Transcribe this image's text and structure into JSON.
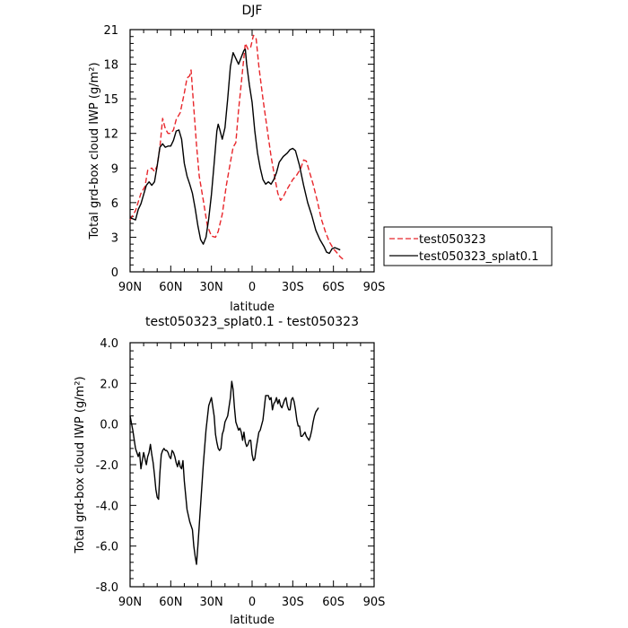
{
  "chart_data": [
    {
      "type": "line",
      "title": "DJF",
      "xlabel": "latitude",
      "ylabel": "Total grd-box cloud IWP (g/m²)",
      "xlim": [
        90,
        -90
      ],
      "ylim": [
        0,
        21
      ],
      "xticks": [
        90,
        60,
        30,
        0,
        -30,
        -60,
        -90
      ],
      "xtick_labels": [
        "90N",
        "60N",
        "30N",
        "0",
        "30S",
        "60S",
        "90S"
      ],
      "yticks": [
        0,
        3,
        6,
        9,
        12,
        15,
        18,
        21
      ],
      "ytick_labels": [
        "0",
        "3",
        "6",
        "9",
        "12",
        "15",
        "18",
        "21"
      ],
      "legend_position": "right-outside",
      "series": [
        {
          "name": "test050323",
          "color": "#e8262b",
          "dash": "dashed",
          "points": [
            [
              90,
              4.5
            ],
            [
              86,
              5.3
            ],
            [
              82,
              6.8
            ],
            [
              79,
              7.4
            ],
            [
              77,
              8.8
            ],
            [
              74,
              9.0
            ],
            [
              72,
              8.7
            ],
            [
              70,
              9.2
            ],
            [
              68,
              10.8
            ],
            [
              66,
              13.3
            ],
            [
              64,
              12.4
            ],
            [
              62,
              12.0
            ],
            [
              60,
              12.0
            ],
            [
              58,
              12.3
            ],
            [
              56,
              13.2
            ],
            [
              53,
              13.8
            ],
            [
              50,
              15.5
            ],
            [
              48,
              16.8
            ],
            [
              46,
              17.0
            ],
            [
              45,
              17.5
            ],
            [
              43,
              14.2
            ],
            [
              41,
              11.0
            ],
            [
              39,
              8.3
            ],
            [
              36,
              6.2
            ],
            [
              33,
              4.0
            ],
            [
              30,
              3.1
            ],
            [
              27,
              3.0
            ],
            [
              25,
              3.5
            ],
            [
              22,
              5.0
            ],
            [
              19,
              7.5
            ],
            [
              16,
              9.5
            ],
            [
              14,
              10.8
            ],
            [
              12,
              11.2
            ],
            [
              10,
              14.0
            ],
            [
              7,
              17.5
            ],
            [
              5,
              19.8
            ],
            [
              3,
              19.3
            ],
            [
              1,
              19.5
            ],
            [
              -1,
              20.5
            ],
            [
              -3,
              20.2
            ],
            [
              -5,
              17.8
            ],
            [
              -8,
              15.0
            ],
            [
              -11,
              12.5
            ],
            [
              -14,
              10.0
            ],
            [
              -17,
              8.0
            ],
            [
              -19,
              6.8
            ],
            [
              -21,
              6.2
            ],
            [
              -23,
              6.5
            ],
            [
              -25,
              7.0
            ],
            [
              -28,
              7.6
            ],
            [
              -30,
              8.0
            ],
            [
              -33,
              8.4
            ],
            [
              -36,
              9.0
            ],
            [
              -38,
              9.7
            ],
            [
              -40,
              9.6
            ],
            [
              -42,
              8.8
            ],
            [
              -45,
              7.6
            ],
            [
              -48,
              6.2
            ],
            [
              -51,
              4.6
            ],
            [
              -54,
              3.5
            ],
            [
              -57,
              2.6
            ],
            [
              -60,
              2.0
            ],
            [
              -63,
              1.6
            ],
            [
              -65,
              1.3
            ],
            [
              -67,
              1.1
            ]
          ]
        },
        {
          "name": "test050323_splat0.1",
          "color": "#000000",
          "dash": "solid",
          "points": [
            [
              90,
              4.7
            ],
            [
              88,
              4.6
            ],
            [
              86,
              4.5
            ],
            [
              84,
              5.4
            ],
            [
              82,
              5.9
            ],
            [
              80,
              6.7
            ],
            [
              78,
              7.5
            ],
            [
              76,
              7.8
            ],
            [
              74,
              7.5
            ],
            [
              72,
              7.8
            ],
            [
              70,
              9.2
            ],
            [
              68,
              10.8
            ],
            [
              66,
              11.1
            ],
            [
              64,
              10.8
            ],
            [
              62,
              10.9
            ],
            [
              60,
              10.9
            ],
            [
              58,
              11.4
            ],
            [
              56,
              12.2
            ],
            [
              54,
              12.3
            ],
            [
              52,
              11.5
            ],
            [
              50,
              9.4
            ],
            [
              48,
              8.3
            ],
            [
              46,
              7.6
            ],
            [
              44,
              6.8
            ],
            [
              42,
              5.5
            ],
            [
              40,
              4.0
            ],
            [
              38,
              2.8
            ],
            [
              36,
              2.4
            ],
            [
              34,
              3.0
            ],
            [
              32,
              4.6
            ],
            [
              30,
              6.7
            ],
            [
              28,
              9.4
            ],
            [
              26,
              12.2
            ],
            [
              25,
              12.8
            ],
            [
              24,
              12.4
            ],
            [
              22,
              11.5
            ],
            [
              20,
              12.5
            ],
            [
              18,
              15.0
            ],
            [
              16,
              17.8
            ],
            [
              14,
              19.0
            ],
            [
              12,
              18.5
            ],
            [
              10,
              18.0
            ],
            [
              8,
              18.6
            ],
            [
              6,
              19.2
            ],
            [
              5,
              19.3
            ],
            [
              4,
              18.0
            ],
            [
              2,
              16.2
            ],
            [
              0,
              14.7
            ],
            [
              -2,
              12.2
            ],
            [
              -4,
              10.3
            ],
            [
              -6,
              9.0
            ],
            [
              -8,
              8.0
            ],
            [
              -10,
              7.6
            ],
            [
              -12,
              7.8
            ],
            [
              -14,
              7.6
            ],
            [
              -16,
              8.0
            ],
            [
              -18,
              8.6
            ],
            [
              -20,
              9.5
            ],
            [
              -23,
              10.0
            ],
            [
              -26,
              10.3
            ],
            [
              -28,
              10.6
            ],
            [
              -30,
              10.7
            ],
            [
              -32,
              10.5
            ],
            [
              -35,
              9.2
            ],
            [
              -38,
              7.5
            ],
            [
              -41,
              6.0
            ],
            [
              -44,
              4.9
            ],
            [
              -47,
              3.6
            ],
            [
              -50,
              2.8
            ],
            [
              -53,
              2.2
            ],
            [
              -55,
              1.7
            ],
            [
              -57,
              1.6
            ],
            [
              -59,
              2.0
            ],
            [
              -61,
              2.1
            ],
            [
              -63,
              2.0
            ],
            [
              -65,
              1.9
            ]
          ]
        }
      ]
    },
    {
      "type": "line",
      "title": "test050323_splat0.1 - test050323",
      "xlabel": "latitude",
      "ylabel": "Total grd-box cloud IWP (g/m²)",
      "xlim": [
        90,
        -90
      ],
      "ylim": [
        -8,
        4
      ],
      "xticks": [
        90,
        60,
        30,
        0,
        -30,
        -60,
        -90
      ],
      "xtick_labels": [
        "90N",
        "60N",
        "30N",
        "0",
        "30S",
        "60S",
        "90S"
      ],
      "yticks": [
        -8,
        -6,
        -4,
        -2,
        0,
        2,
        4
      ],
      "ytick_labels": [
        "-8.0",
        "-6.0",
        "-4.0",
        "-2.0",
        "0.0",
        "2.0",
        "4.0"
      ],
      "series": [
        {
          "color": "#000000",
          "dash": "solid",
          "points": [
            [
              90,
              0.4
            ],
            [
              88,
              -0.3
            ],
            [
              86,
              -1.2
            ],
            [
              84,
              -1.6
            ],
            [
              83,
              -1.4
            ],
            [
              82,
              -2.2
            ],
            [
              81,
              -1.8
            ],
            [
              80,
              -1.4
            ],
            [
              78,
              -2.0
            ],
            [
              77,
              -1.6
            ],
            [
              76,
              -1.4
            ],
            [
              75,
              -1.0
            ],
            [
              74,
              -1.5
            ],
            [
              73,
              -1.9
            ],
            [
              72,
              -2.5
            ],
            [
              71,
              -3.2
            ],
            [
              70,
              -3.6
            ],
            [
              69,
              -3.7
            ],
            [
              68,
              -2.4
            ],
            [
              67,
              -1.5
            ],
            [
              66,
              -1.3
            ],
            [
              65,
              -1.2
            ],
            [
              64,
              -1.3
            ],
            [
              63,
              -1.3
            ],
            [
              62,
              -1.4
            ],
            [
              61,
              -1.6
            ],
            [
              60,
              -1.7
            ],
            [
              59,
              -1.3
            ],
            [
              58,
              -1.4
            ],
            [
              57,
              -1.6
            ],
            [
              56,
              -1.9
            ],
            [
              55,
              -2.1
            ],
            [
              54,
              -1.8
            ],
            [
              53,
              -2.1
            ],
            [
              52,
              -2.2
            ],
            [
              51,
              -1.8
            ],
            [
              50,
              -2.8
            ],
            [
              48,
              -4.2
            ],
            [
              46,
              -4.8
            ],
            [
              44,
              -5.2
            ],
            [
              43,
              -6.0
            ],
            [
              42,
              -6.5
            ],
            [
              41,
              -6.9
            ],
            [
              40,
              -6.0
            ],
            [
              38,
              -4.0
            ],
            [
              36,
              -2.0
            ],
            [
              34,
              -0.3
            ],
            [
              32,
              0.9
            ],
            [
              30,
              1.3
            ],
            [
              28,
              0.4
            ],
            [
              27,
              -0.5
            ],
            [
              26,
              -0.9
            ],
            [
              25,
              -1.2
            ],
            [
              24,
              -1.3
            ],
            [
              23,
              -1.2
            ],
            [
              22,
              -0.5
            ],
            [
              21,
              -0.3
            ],
            [
              20,
              0.1
            ],
            [
              18,
              0.4
            ],
            [
              16,
              1.3
            ],
            [
              15,
              2.1
            ],
            [
              14,
              1.7
            ],
            [
              13,
              0.8
            ],
            [
              12,
              0.1
            ],
            [
              11,
              -0.1
            ],
            [
              10,
              -0.3
            ],
            [
              9,
              -0.2
            ],
            [
              8,
              -0.4
            ],
            [
              7,
              -0.8
            ],
            [
              6,
              -0.4
            ],
            [
              5,
              -0.9
            ],
            [
              4,
              -1.1
            ],
            [
              3,
              -1.0
            ],
            [
              2,
              -0.8
            ],
            [
              1,
              -0.8
            ],
            [
              0,
              -1.5
            ],
            [
              -1,
              -1.8
            ],
            [
              -2,
              -1.7
            ],
            [
              -3,
              -1.2
            ],
            [
              -4,
              -0.8
            ],
            [
              -5,
              -0.4
            ],
            [
              -6,
              -0.3
            ],
            [
              -8,
              0.2
            ],
            [
              -9,
              0.8
            ],
            [
              -10,
              1.4
            ],
            [
              -12,
              1.4
            ],
            [
              -13,
              1.2
            ],
            [
              -14,
              1.3
            ],
            [
              -15,
              0.7
            ],
            [
              -16,
              1.0
            ],
            [
              -17,
              1.1
            ],
            [
              -18,
              1.3
            ],
            [
              -19,
              1.0
            ],
            [
              -20,
              1.2
            ],
            [
              -21,
              0.9
            ],
            [
              -22,
              0.8
            ],
            [
              -23,
              1.0
            ],
            [
              -24,
              1.2
            ],
            [
              -25,
              1.3
            ],
            [
              -26,
              0.9
            ],
            [
              -27,
              0.7
            ],
            [
              -28,
              0.7
            ],
            [
              -29,
              1.2
            ],
            [
              -30,
              1.3
            ],
            [
              -31,
              1.1
            ],
            [
              -32,
              0.7
            ],
            [
              -33,
              0.2
            ],
            [
              -34,
              -0.1
            ],
            [
              -35,
              -0.1
            ],
            [
              -36,
              -0.6
            ],
            [
              -37,
              -0.6
            ],
            [
              -38,
              -0.5
            ],
            [
              -39,
              -0.4
            ],
            [
              -40,
              -0.6
            ],
            [
              -41,
              -0.7
            ],
            [
              -42,
              -0.8
            ],
            [
              -43,
              -0.6
            ],
            [
              -44,
              -0.3
            ],
            [
              -45,
              0.1
            ],
            [
              -46,
              0.4
            ],
            [
              -47,
              0.6
            ],
            [
              -48,
              0.7
            ],
            [
              -49,
              0.8
            ]
          ]
        }
      ]
    }
  ]
}
